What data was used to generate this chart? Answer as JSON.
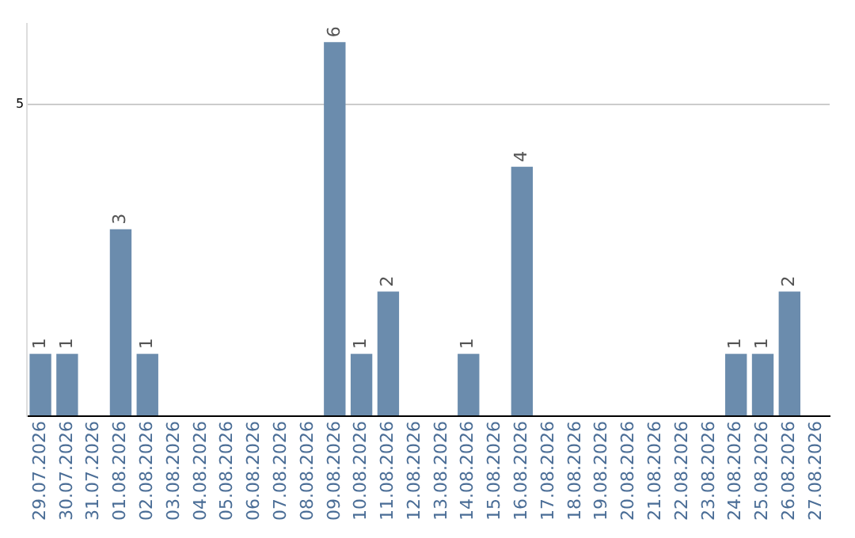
{
  "chart_data": {
    "type": "bar",
    "categories": [
      "29.07.2026",
      "30.07.2026",
      "31.07.2026",
      "01.08.2026",
      "02.08.2026",
      "03.08.2026",
      "04.08.2026",
      "05.08.2026",
      "06.08.2026",
      "07.08.2026",
      "08.08.2026",
      "09.08.2026",
      "10.08.2026",
      "11.08.2026",
      "12.08.2026",
      "13.08.2026",
      "14.08.2026",
      "15.08.2026",
      "16.08.2026",
      "17.08.2026",
      "18.08.2026",
      "19.08.2026",
      "20.08.2026",
      "21.08.2026",
      "22.08.2026",
      "23.08.2026",
      "24.08.2026",
      "25.08.2026",
      "26.08.2026",
      "27.08.2026"
    ],
    "values": [
      1,
      1,
      0,
      3,
      1,
      0,
      0,
      0,
      0,
      0,
      0,
      6,
      1,
      2,
      0,
      0,
      1,
      0,
      4,
      0,
      0,
      0,
      0,
      0,
      0,
      0,
      1,
      1,
      2,
      0
    ],
    "value_labels": [
      "1",
      "1",
      null,
      "3",
      "1",
      null,
      null,
      null,
      null,
      null,
      null,
      "6",
      "1",
      "2",
      null,
      null,
      "1",
      null,
      "4",
      null,
      null,
      null,
      null,
      null,
      null,
      null,
      "1",
      "1",
      "2",
      null
    ],
    "color": "#6b8cad",
    "ylim": [
      0,
      6.3
    ],
    "yticks": [
      {
        "value": 0,
        "label": null
      },
      5
    ],
    "grid": "y",
    "legend": false
  }
}
